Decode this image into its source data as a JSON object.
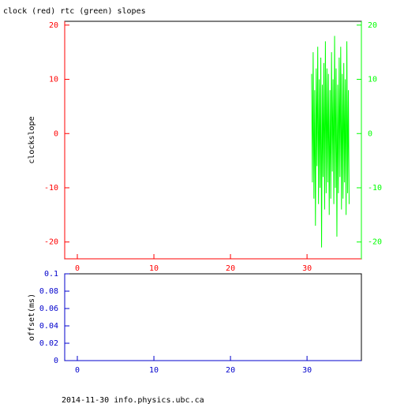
{
  "chart_data": [
    {
      "type": "line",
      "title": "clock (red) rtc (green) slopes",
      "ylabel": "clockslope",
      "xlim": [
        -1.65,
        37.1
      ],
      "xticks": [
        0,
        10,
        20,
        30
      ],
      "ylim": [
        -23.1,
        20.7
      ],
      "yticks": [
        -20,
        -10,
        0,
        10,
        20
      ],
      "y2lim": [
        -23.1,
        20.7
      ],
      "y2ticks": [
        -20,
        -10,
        0,
        10,
        20
      ],
      "axis_color": "#ff0000",
      "y2_color": "#00ff00",
      "series": [
        {
          "color": "#00ff00",
          "axis": "y2",
          "x": [
            30.6,
            30.7,
            30.8,
            30.9,
            31.0,
            31.1,
            31.2,
            31.3,
            31.4,
            31.5,
            31.6,
            31.7,
            31.8,
            31.9,
            32.0,
            32.1,
            32.2,
            32.3,
            32.4,
            32.5,
            32.6,
            32.7,
            32.8,
            32.9,
            33.0,
            33.1,
            33.2,
            33.3,
            33.4,
            33.5,
            33.6,
            33.7,
            33.8,
            33.9,
            34.0,
            34.1,
            34.2,
            34.3,
            34.4,
            34.5,
            34.6,
            34.7,
            34.8,
            34.9,
            35.0,
            35.1,
            35.2,
            35.3,
            35.4,
            35.5
          ],
          "values": [
            11,
            -9,
            15,
            -12,
            8,
            -17,
            12,
            -6,
            16,
            -13,
            10,
            -10,
            14,
            -21,
            9,
            -8,
            13,
            -14,
            17,
            -11,
            12,
            -9,
            11,
            -15,
            8,
            -12,
            15,
            -7,
            10,
            -13,
            18,
            -10,
            12,
            -19,
            9,
            -11,
            14,
            -8,
            16,
            -14,
            11,
            -12,
            13,
            -9,
            10,
            -15,
            17,
            -11,
            8,
            -13
          ]
        }
      ]
    },
    {
      "type": "line",
      "ylabel": "offset(ms)",
      "xlim": [
        -1.65,
        37.1
      ],
      "xticks": [
        0,
        10,
        20,
        30
      ],
      "ylim": [
        0,
        0.1
      ],
      "yticks": [
        0,
        0.02,
        0.04,
        0.06,
        0.08,
        0.1
      ],
      "axis_color": "#0000cc",
      "series": []
    }
  ],
  "footer": "2014-11-30 info.physics.ubc.ca"
}
